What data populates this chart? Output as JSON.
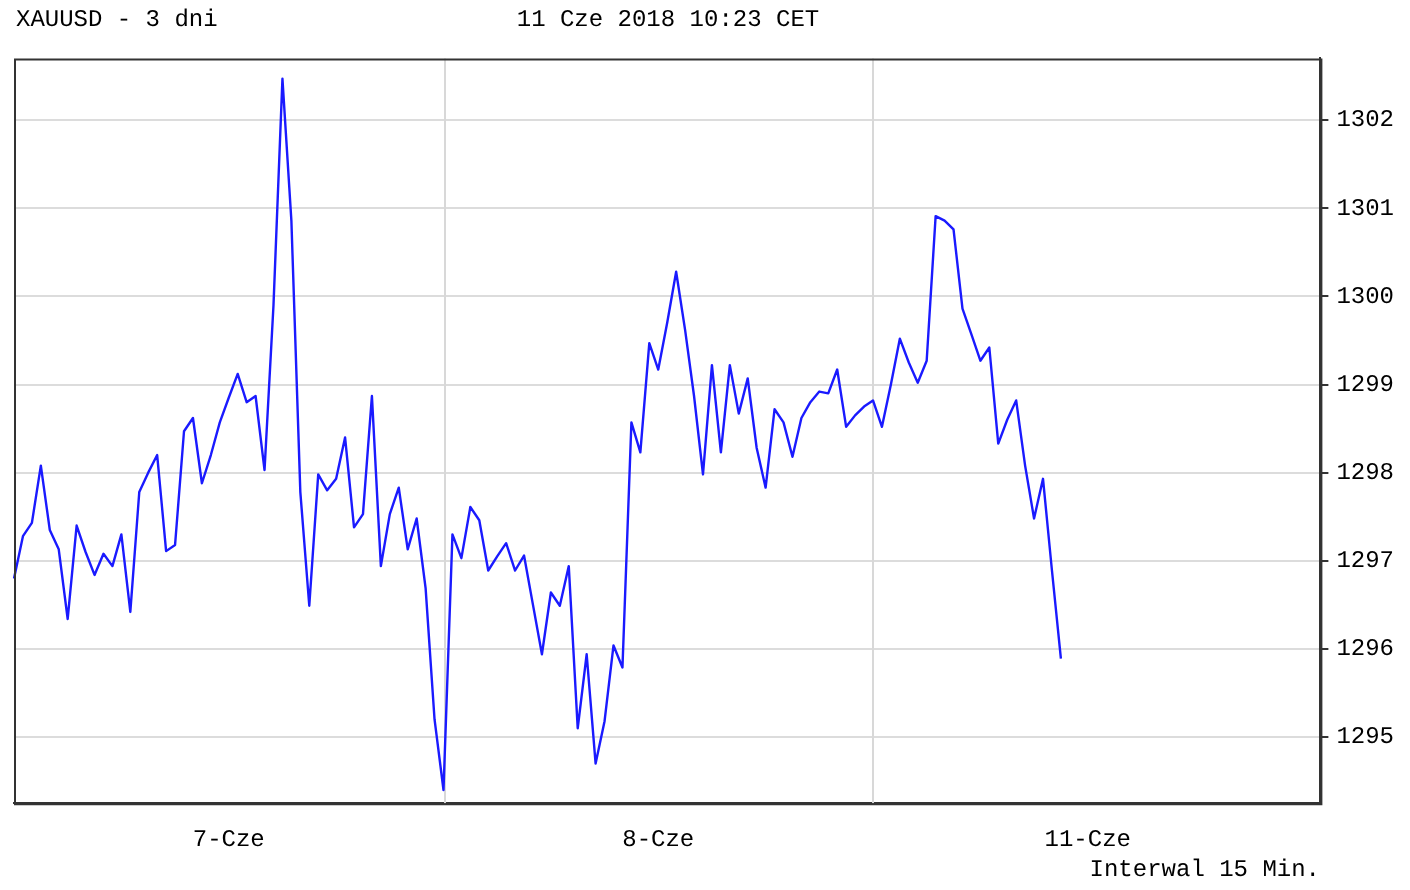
{
  "chart_data": {
    "type": "line",
    "title": "XAUUSD - 3 dni",
    "subtitle": "11 Cze 2018 10:23 CET",
    "annotations": [
      "Interwal 15 Min."
    ],
    "categories": [
      null,
      null,
      null,
      null,
      null,
      null,
      null,
      null,
      null,
      null,
      null,
      null,
      null,
      null,
      null,
      null,
      null,
      null,
      null,
      null,
      null,
      null,
      null,
      null,
      "7-Cze",
      null,
      null,
      null,
      null,
      null,
      null,
      null,
      null,
      null,
      null,
      null,
      null,
      null,
      null,
      null,
      null,
      null,
      null,
      null,
      null,
      null,
      null,
      null,
      null,
      null,
      null,
      null,
      null,
      null,
      null,
      null,
      null,
      null,
      null,
      null,
      null,
      null,
      null,
      null,
      null,
      null,
      null,
      null,
      null,
      null,
      null,
      null,
      "8-Cze",
      null,
      null,
      null,
      null,
      null,
      null,
      null,
      null,
      null,
      null,
      null,
      null,
      null,
      null,
      null,
      null,
      null,
      null,
      null,
      null,
      null,
      null,
      null,
      null,
      null,
      null,
      null,
      null,
      null,
      null,
      null,
      null,
      null,
      null,
      null,
      null,
      null,
      null,
      null,
      null,
      null,
      null,
      null,
      null,
      null,
      null,
      null,
      "11-Cze",
      null,
      null,
      null,
      null,
      null,
      null,
      null,
      null,
      null,
      null,
      null,
      null,
      null,
      null,
      null,
      null,
      null,
      null,
      null,
      null,
      null,
      null,
      null,
      null,
      null,
      null
    ],
    "ylim": [
      1294.25,
      1302.7
    ],
    "yticks": [
      1295,
      1296,
      1297,
      1298,
      1299,
      1300,
      1301,
      1302
    ],
    "grid": true,
    "legend": false,
    "marker": "none",
    "line_style": "solid",
    "series": [
      {
        "color": "#1a1aff",
        "values": [
          1296.8,
          1297.28,
          1297.43,
          1298.08,
          1297.35,
          1297.13,
          1296.34,
          1297.4,
          1297.1,
          1296.84,
          1297.08,
          1296.94,
          1297.3,
          1296.42,
          1297.78,
          1298.0,
          1298.2,
          1297.11,
          1297.18,
          1298.47,
          1298.62,
          1297.88,
          1298.2,
          1298.57,
          1298.85,
          1299.12,
          1298.8,
          1298.87,
          1298.03,
          1299.9,
          1302.47,
          1300.86,
          1297.78,
          1296.49,
          1297.98,
          1297.8,
          1297.93,
          1298.4,
          1297.38,
          1297.53,
          1298.87,
          1296.94,
          1297.53,
          1297.83,
          1297.13,
          1297.48,
          1296.69,
          1295.2,
          1294.4,
          1297.3,
          1297.03,
          1297.61,
          1297.46,
          1296.89,
          1297.05,
          1297.2,
          1296.89,
          1297.06,
          1296.5,
          1295.94,
          1296.64,
          1296.49,
          1296.94,
          1295.1,
          1295.94,
          1294.7,
          1295.18,
          1296.04,
          1295.79,
          1298.57,
          1298.23,
          1299.47,
          1299.17,
          1299.7,
          1300.28,
          1299.62,
          1298.87,
          1297.98,
          1299.22,
          1298.23,
          1299.22,
          1298.67,
          1299.07,
          1298.28,
          1297.83,
          1298.72,
          1298.57,
          1298.18,
          1298.62,
          1298.8,
          1298.92,
          1298.9,
          1299.17,
          1298.52,
          1298.65,
          1298.75,
          1298.82,
          1298.52,
          1299.0,
          1299.52,
          1299.25,
          1299.02,
          1299.27,
          1300.91,
          1300.86,
          1300.76,
          1299.86,
          1299.57,
          1299.27,
          1299.42,
          1298.33,
          1298.6,
          1298.82,
          1298.08,
          1297.48,
          1297.93,
          1296.89,
          1295.89,
          null,
          null,
          null,
          null,
          null,
          null,
          null,
          null,
          null,
          null,
          null,
          null,
          null,
          null,
          null,
          null,
          null,
          null,
          null,
          null,
          null,
          null,
          null,
          null,
          null,
          null,
          null,
          null,
          null
        ]
      }
    ]
  }
}
